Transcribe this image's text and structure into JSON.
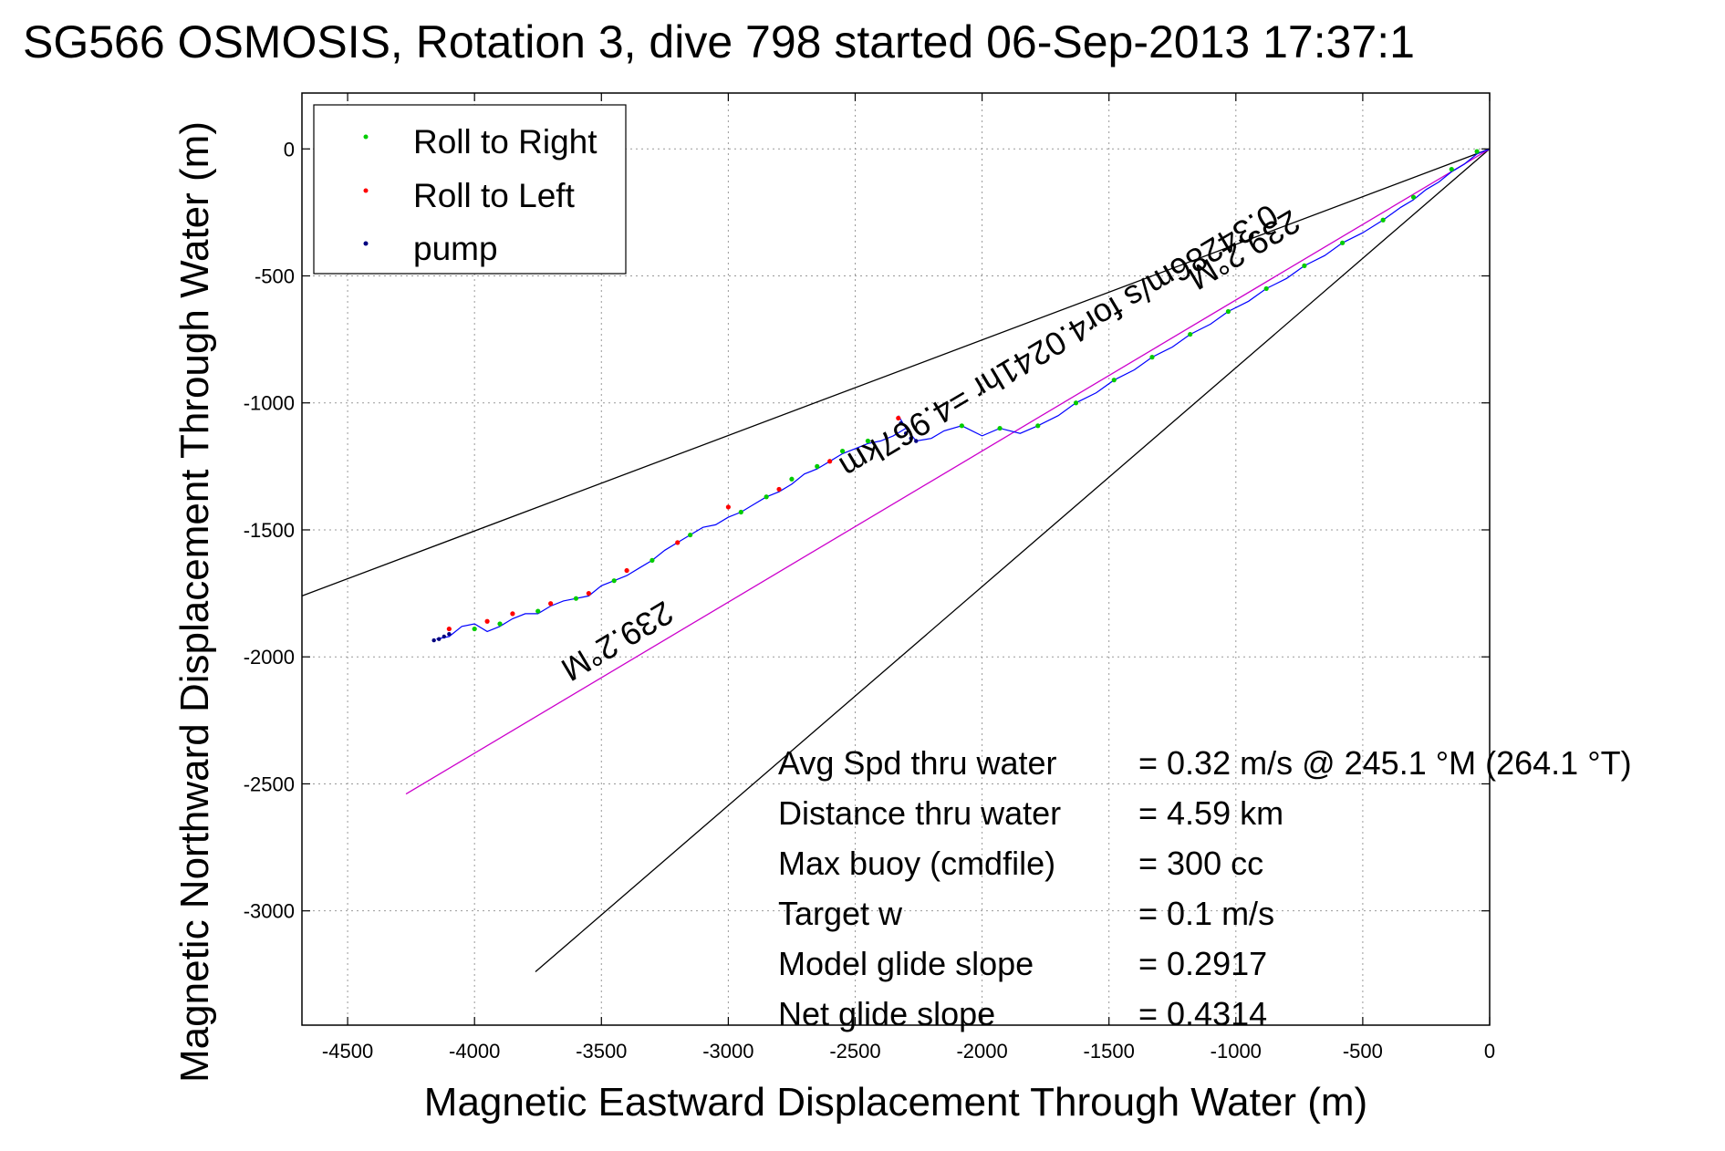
{
  "chart_data": {
    "type": "line",
    "title": "SG566 OSMOSIS, Rotation 3, dive 798 started 06-Sep-2013 17:37:1",
    "xlabel": "Magnetic Eastward Displacement Through Water (m)",
    "ylabel": "Magnetic Northward Displacement Through Water (m)",
    "xlim": [
      -4680,
      0
    ],
    "ylim": [
      -3450,
      220
    ],
    "x_ticks": [
      -4500,
      -4000,
      -3500,
      -3000,
      -2500,
      -2000,
      -1500,
      -1000,
      -500,
      0
    ],
    "y_ticks": [
      0,
      -500,
      -1000,
      -1500,
      -2000,
      -2500,
      -3000
    ],
    "grid": true,
    "legend_position": "top-left",
    "legend": [
      {
        "label": "Roll to Right",
        "color": "#00cc00"
      },
      {
        "label": "Roll to Left",
        "color": "#ff0000"
      },
      {
        "label": "pump",
        "color": "#000080"
      }
    ],
    "track": {
      "name": "glider track",
      "color": "#0000ff",
      "x": [
        0,
        -50,
        -100,
        -150,
        -200,
        -250,
        -300,
        -350,
        -420,
        -500,
        -580,
        -650,
        -730,
        -800,
        -880,
        -950,
        -1030,
        -1100,
        -1180,
        -1250,
        -1330,
        -1400,
        -1480,
        -1550,
        -1630,
        -1700,
        -1780,
        -1850,
        -1930,
        -2000,
        -2080,
        -2150,
        -2200,
        -2260,
        -2300,
        -2330,
        -2300,
        -2350,
        -2400,
        -2450,
        -2500,
        -2550,
        -2600,
        -2650,
        -2700,
        -2750,
        -2800,
        -2850,
        -2900,
        -2950,
        -3000,
        -3050,
        -3100,
        -3150,
        -3200,
        -3250,
        -3300,
        -3350,
        -3400,
        -3450,
        -3500,
        -3550,
        -3600,
        -3650,
        -3700,
        -3750,
        -3800,
        -3850,
        -3900,
        -3950,
        -4000,
        -4050,
        -4100,
        -4150
      ],
      "y": [
        0,
        -20,
        -60,
        -90,
        -130,
        -160,
        -200,
        -230,
        -280,
        -330,
        -370,
        -420,
        -460,
        -510,
        -550,
        -600,
        -640,
        -690,
        -730,
        -780,
        -820,
        -870,
        -910,
        -960,
        -1000,
        -1050,
        -1090,
        -1120,
        -1100,
        -1130,
        -1090,
        -1110,
        -1140,
        -1150,
        -1100,
        -1050,
        -1100,
        -1130,
        -1150,
        -1160,
        -1180,
        -1200,
        -1230,
        -1260,
        -1280,
        -1320,
        -1350,
        -1370,
        -1400,
        -1430,
        -1450,
        -1480,
        -1490,
        -1520,
        -1550,
        -1580,
        -1620,
        -1650,
        -1680,
        -1700,
        -1720,
        -1760,
        -1770,
        -1780,
        -1800,
        -1830,
        -1830,
        -1850,
        -1880,
        -1900,
        -1870,
        -1880,
        -1920,
        -1930
      ]
    },
    "roll_right": {
      "x": [
        -50,
        -150,
        -300,
        -420,
        -580,
        -730,
        -880,
        -1030,
        -1180,
        -1330,
        -1480,
        -1630,
        -1780,
        -1930,
        -2080,
        -2450,
        -2550,
        -2650,
        -2750,
        -2850,
        -2950,
        -3150,
        -3300,
        -3450,
        -3600,
        -3750,
        -3900,
        -4000
      ],
      "y": [
        -10,
        -80,
        -190,
        -280,
        -370,
        -460,
        -550,
        -640,
        -730,
        -820,
        -910,
        -1000,
        -1090,
        -1100,
        -1090,
        -1150,
        -1190,
        -1250,
        -1300,
        -1370,
        -1430,
        -1520,
        -1620,
        -1700,
        -1770,
        -1820,
        -1870,
        -1890
      ]
    },
    "roll_left": {
      "x": [
        -2330,
        -2600,
        -2800,
        -3000,
        -3200,
        -3400,
        -3550,
        -3700,
        -3850,
        -3950,
        -4100
      ],
      "y": [
        -1060,
        -1230,
        -1340,
        -1410,
        -1550,
        -1660,
        -1750,
        -1790,
        -1830,
        -1860,
        -1890
      ]
    },
    "pump": {
      "x": [
        -2320,
        -2300,
        -2280,
        -2260,
        -4100,
        -4120,
        -4140,
        -4160
      ],
      "y": [
        -1080,
        -1120,
        -1140,
        -1150,
        -1910,
        -1920,
        -1930,
        -1935
      ]
    },
    "guide_lines": [
      {
        "name": "upper heading",
        "color": "#000000",
        "x": [
          0,
          -4680
        ],
        "y": [
          0,
          -1760
        ]
      },
      {
        "name": "lower heading",
        "color": "#000000",
        "x": [
          0,
          -3760
        ],
        "y": [
          0,
          -3240
        ]
      },
      {
        "name": "mean heading",
        "color": "#cc00cc",
        "x": [
          0,
          -4270
        ],
        "y": [
          0,
          -2540
        ]
      }
    ],
    "annotations": [
      {
        "text": "239.2°M",
        "x": -990,
        "y": -360
      },
      {
        "text": "0.34286m/s for4.0241hr =4.967km",
        "x": -1720,
        "y": -720
      },
      {
        "text": "239.2°M",
        "x": -3460,
        "y": -1900
      }
    ],
    "stats": [
      {
        "label": "Avg Spd thru water",
        "value": "=  0.32 m/s @ 245.1 °M (264.1 °T)"
      },
      {
        "label": "Distance thru water",
        "value": "=  4.59 km"
      },
      {
        "label": "Max buoy (cmdfile)",
        "value": "= 300 cc"
      },
      {
        "label": "Target w",
        "value": "= 0.1 m/s"
      },
      {
        "label": "Model glide slope",
        "value": "= 0.2917"
      },
      {
        "label": "Net glide slope",
        "value": "= 0.4314"
      }
    ]
  }
}
